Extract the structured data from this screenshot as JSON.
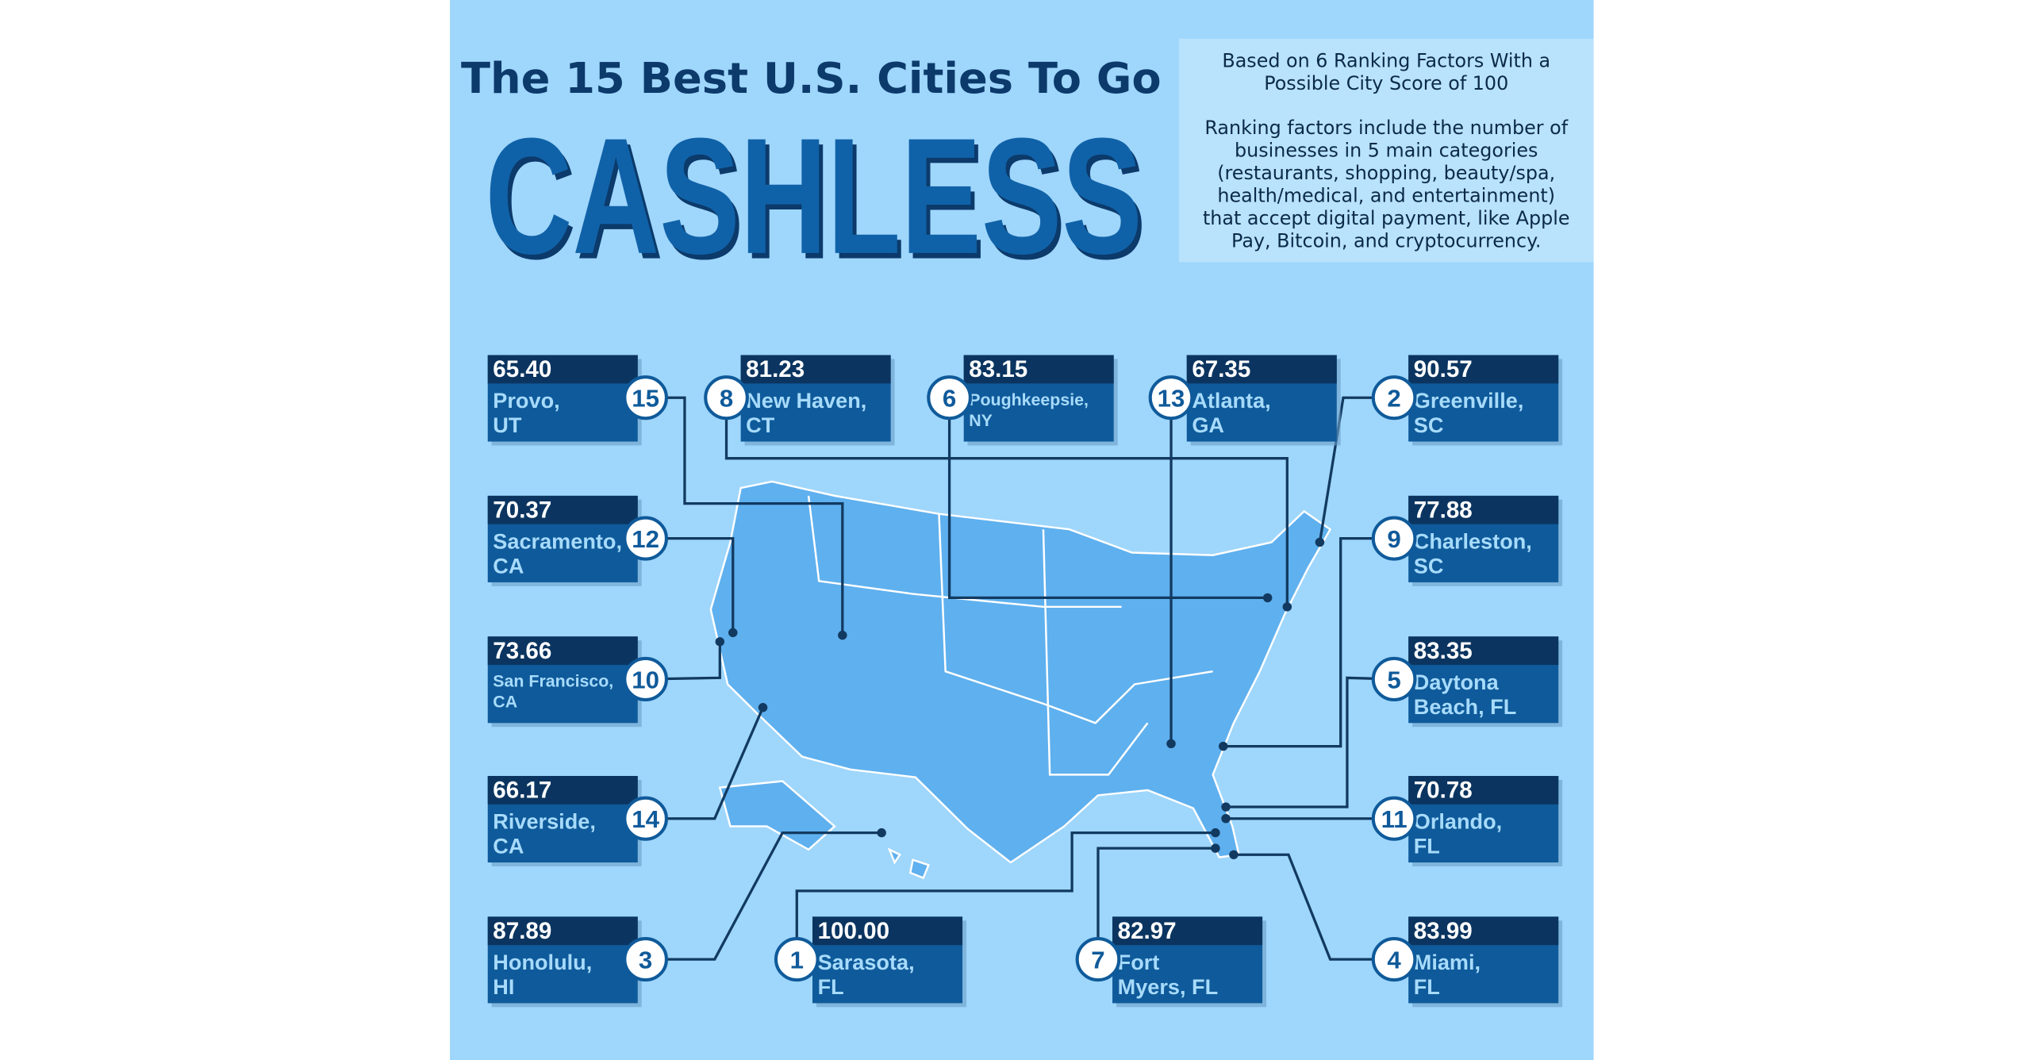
{
  "header": {
    "title_line1": "The 15 Best U.S. Cities To Go",
    "title_line2": "CASHLESS"
  },
  "description": [
    [
      "Based on 6 Ranking Factors With a",
      "Possible City Score of 100"
    ],
    [
      "Ranking factors include the number of",
      "businesses in 5 main categories",
      "(restaurants, shopping, beauty/spa,",
      "health/medical, and entertainment)",
      "that accept digital payment, like Apple",
      "Pay, Bitcoin, and cryptocurrency."
    ]
  ],
  "cities": [
    {
      "rank": 15,
      "score": "65.40",
      "name": [
        "Provo,",
        "UT"
      ]
    },
    {
      "rank": 12,
      "score": "70.37",
      "name": [
        "Sacramento,",
        "CA"
      ]
    },
    {
      "rank": 10,
      "score": "73.66",
      "name": [
        "San Francisco,",
        "CA"
      ]
    },
    {
      "rank": 14,
      "score": "66.17",
      "name": [
        "Riverside,",
        "CA"
      ]
    },
    {
      "rank": 3,
      "score": "87.89",
      "name": [
        "Honolulu,",
        "HI"
      ]
    },
    {
      "rank": 8,
      "score": "81.23",
      "name": [
        "New Haven,",
        "CT"
      ]
    },
    {
      "rank": 6,
      "score": "83.15",
      "name": [
        "Poughkeepsie,",
        "NY"
      ]
    },
    {
      "rank": 13,
      "score": "67.35",
      "name": [
        "Atlanta,",
        "GA"
      ]
    },
    {
      "rank": 2,
      "score": "90.57",
      "name": [
        "Greenville,",
        "SC"
      ]
    },
    {
      "rank": 9,
      "score": "77.88",
      "name": [
        "Charleston,",
        "SC"
      ]
    },
    {
      "rank": 5,
      "score": "83.35",
      "name": [
        "Daytona",
        "Beach, FL"
      ]
    },
    {
      "rank": 11,
      "score": "70.78",
      "name": [
        "Orlando,",
        "FL"
      ]
    },
    {
      "rank": 4,
      "score": "83.99",
      "name": [
        "Miami,",
        "FL"
      ]
    },
    {
      "rank": 1,
      "score": "100.00",
      "name": [
        "Sarasota,",
        "FL"
      ]
    },
    {
      "rank": 7,
      "score": "82.97",
      "name": [
        "Fort",
        "Myers, FL"
      ]
    }
  ]
}
